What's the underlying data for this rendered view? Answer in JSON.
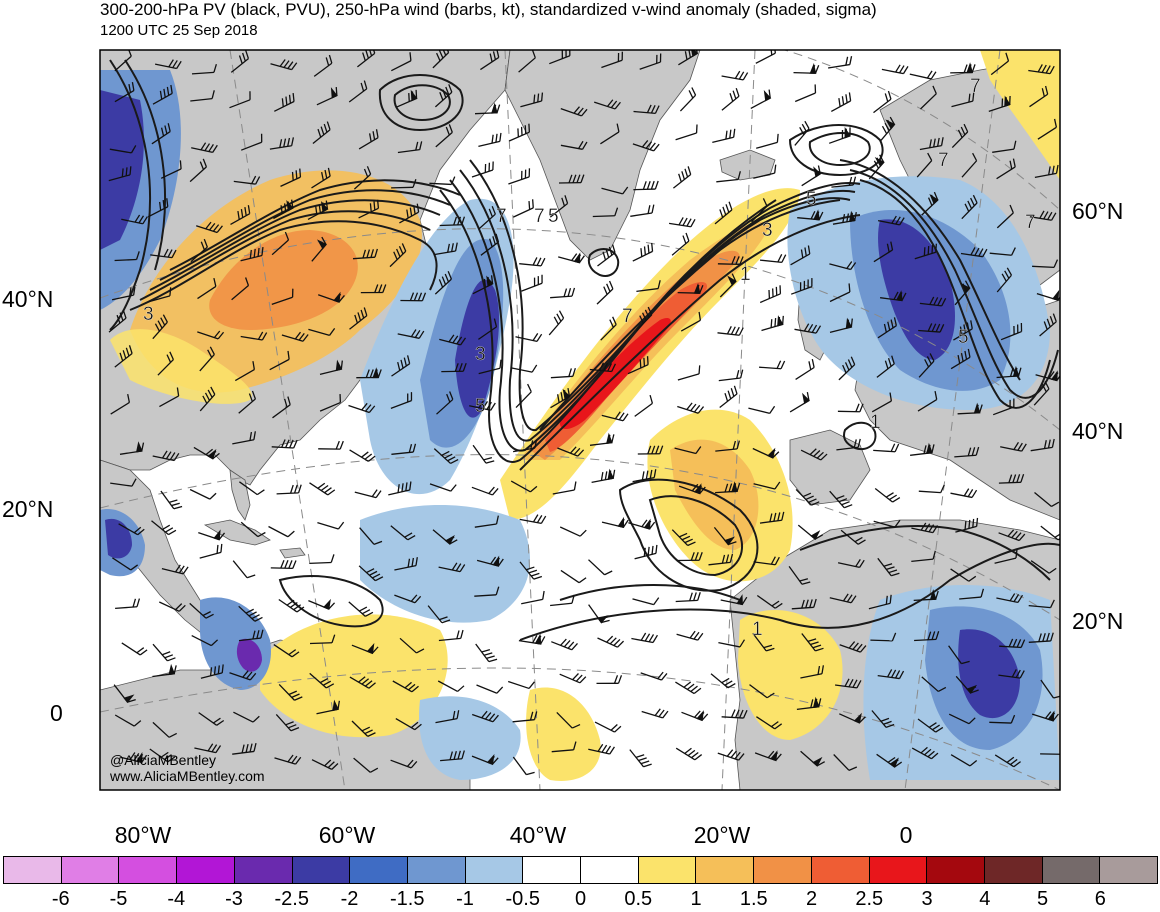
{
  "header": {
    "title": "300-200-hPa PV (black, PVU), 250-hPa wind (barbs, kt), standardized v-wind anomaly (shaded, sigma)",
    "valid_time": "1200 UTC 25 Sep 2018"
  },
  "map": {
    "left_lat_labels": [
      "40°N",
      "20°N",
      "0"
    ],
    "right_lat_labels": [
      "60°N",
      "40°N",
      "20°N"
    ],
    "lon_labels": [
      "80°W",
      "60°W",
      "40°W",
      "20°W",
      "0"
    ],
    "pv_contour_labels": [
      "7",
      "7",
      "5",
      "3",
      "1",
      "3",
      "5",
      "7",
      "3",
      "5",
      "7",
      "5",
      "1",
      "1",
      "7",
      "7"
    ],
    "colors": {
      "land": "#c8c8c8",
      "ocean": "#ffffff",
      "contour": "#1a1a1a",
      "graticule": "#888888"
    }
  },
  "credits": {
    "handle": "@AliciaMBentley",
    "website": "www.AliciaMBentley.com"
  },
  "colorbar": {
    "colors": [
      "#e9b9e9",
      "#e07ee6",
      "#d44fe0",
      "#b216d6",
      "#6a2aae",
      "#3c3ba4",
      "#3f6cc4",
      "#6f97d0",
      "#a6c8e6",
      "#ffffff",
      "#ffffff",
      "#fbe36b",
      "#f5bf59",
      "#f19146",
      "#ef5d34",
      "#e8161b",
      "#a4080e",
      "#6e2727",
      "#756a6a",
      "#a89b9b"
    ],
    "tick_labels": [
      "-6",
      "-5",
      "-4",
      "-3",
      "-2.5",
      "-2",
      "-1.5",
      "-1",
      "-0.5",
      "0",
      "0.5",
      "1",
      "1.5",
      "2",
      "2.5",
      "3",
      "4",
      "5",
      "6"
    ]
  }
}
